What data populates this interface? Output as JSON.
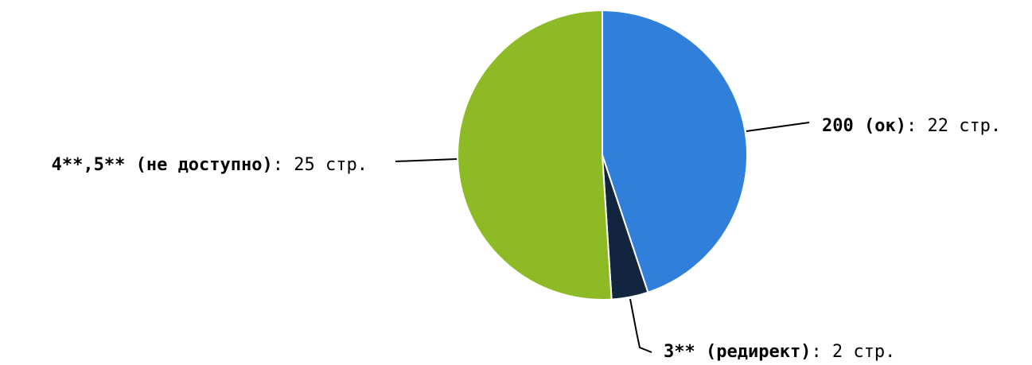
{
  "chart_data": {
    "type": "pie",
    "slices": [
      {
        "name": "200 (ок)",
        "value": 22,
        "unit": "стр.",
        "color": "#3080DB"
      },
      {
        "name": "3** (редирект)",
        "value": 2,
        "unit": "стр.",
        "color": "#11253F"
      },
      {
        "name": "4**,5** (не доступно)",
        "value": 25,
        "unit": "стр.",
        "color": "#8EBB25"
      }
    ],
    "start_angle": "12 o'clock",
    "direction": "clockwise",
    "legend": "none"
  }
}
